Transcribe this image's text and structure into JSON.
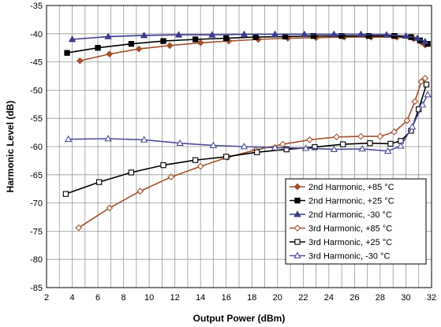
{
  "chart_data": {
    "type": "line",
    "title": "",
    "xlabel": "Output Power (dBm)",
    "ylabel": "Harmonic Level (dB)",
    "xlim": [
      2,
      32
    ],
    "ylim": [
      -85,
      -35
    ],
    "x_ticks": [
      "2",
      "4",
      "6",
      "8",
      "10",
      "12",
      "14",
      "16",
      "18",
      "20",
      "22",
      "24",
      "26",
      "28",
      "30",
      "32"
    ],
    "y_ticks": [
      "-35",
      "-40",
      "-45",
      "-50",
      "-55",
      "-60",
      "-65",
      "-70",
      "-75",
      "-80",
      "-85"
    ],
    "x_minor_step": 1,
    "grid": true,
    "legend_position": "bottom-right",
    "series": [
      {
        "name": "2nd Harmonic, +85 °C",
        "color": "#a0522d",
        "marker": "diamond-filled",
        "points": [
          [
            4.6,
            -44.8
          ],
          [
            6.9,
            -43.6
          ],
          [
            9.2,
            -42.7
          ],
          [
            11.6,
            -42.1
          ],
          [
            14.0,
            -41.6
          ],
          [
            16.2,
            -41.3
          ],
          [
            18.5,
            -41.0
          ],
          [
            20.8,
            -40.8
          ],
          [
            23.0,
            -40.7
          ],
          [
            25.2,
            -40.6
          ],
          [
            27.3,
            -40.6
          ],
          [
            29.3,
            -40.6
          ],
          [
            30.6,
            -40.9
          ],
          [
            31.2,
            -41.5
          ],
          [
            31.5,
            -42.0
          ]
        ]
      },
      {
        "name": "2nd Harmonic, +25 °C",
        "color": "#000000",
        "marker": "square-filled",
        "points": [
          [
            3.6,
            -43.4
          ],
          [
            6.0,
            -42.5
          ],
          [
            8.6,
            -41.8
          ],
          [
            11.1,
            -41.3
          ],
          [
            13.6,
            -41.0
          ],
          [
            16.0,
            -40.8
          ],
          [
            18.3,
            -40.6
          ],
          [
            20.6,
            -40.5
          ],
          [
            22.8,
            -40.4
          ],
          [
            25.0,
            -40.4
          ],
          [
            27.1,
            -40.4
          ],
          [
            29.1,
            -40.4
          ],
          [
            30.4,
            -40.6
          ],
          [
            31.1,
            -41.2
          ],
          [
            31.7,
            -41.8
          ]
        ]
      },
      {
        "name": "2nd Harmonic, -30 °C",
        "color": "#3c3c8c",
        "marker": "triangle-filled",
        "points": [
          [
            4.0,
            -41.0
          ],
          [
            6.8,
            -40.5
          ],
          [
            9.6,
            -40.3
          ],
          [
            12.3,
            -40.2
          ],
          [
            14.9,
            -40.2
          ],
          [
            17.4,
            -40.1
          ],
          [
            19.8,
            -40.1
          ],
          [
            22.1,
            -40.1
          ],
          [
            24.4,
            -40.1
          ],
          [
            26.5,
            -40.1
          ],
          [
            28.5,
            -40.2
          ],
          [
            30.0,
            -40.4
          ],
          [
            30.9,
            -40.8
          ],
          [
            31.5,
            -41.4
          ]
        ]
      },
      {
        "name": "3rd Harmonic, +85 °C",
        "color": "#a0522d",
        "marker": "diamond-open",
        "points": [
          [
            4.5,
            -74.4
          ],
          [
            6.9,
            -70.9
          ],
          [
            9.3,
            -67.9
          ],
          [
            11.7,
            -65.4
          ],
          [
            14.0,
            -63.5
          ],
          [
            16.1,
            -61.9
          ],
          [
            18.3,
            -60.6
          ],
          [
            20.4,
            -59.6
          ],
          [
            22.5,
            -58.8
          ],
          [
            24.6,
            -58.3
          ],
          [
            26.5,
            -58.2
          ],
          [
            28.0,
            -58.2
          ],
          [
            29.1,
            -57.4
          ],
          [
            30.1,
            -55.4
          ],
          [
            30.7,
            -52.0
          ],
          [
            31.2,
            -48.5
          ],
          [
            31.5,
            -47.9
          ]
        ]
      },
      {
        "name": "3rd Harmonic, +25 °C",
        "color": "#000000",
        "marker": "square-open",
        "points": [
          [
            3.5,
            -68.4
          ],
          [
            6.1,
            -66.3
          ],
          [
            8.6,
            -64.6
          ],
          [
            11.1,
            -63.3
          ],
          [
            13.6,
            -62.4
          ],
          [
            16.0,
            -61.8
          ],
          [
            18.4,
            -61.0
          ],
          [
            20.7,
            -60.5
          ],
          [
            22.9,
            -60.1
          ],
          [
            25.1,
            -59.6
          ],
          [
            27.2,
            -59.4
          ],
          [
            28.8,
            -59.5
          ],
          [
            29.6,
            -59.0
          ],
          [
            30.4,
            -57.2
          ],
          [
            31.0,
            -53.4
          ],
          [
            31.6,
            -49.0
          ]
        ]
      },
      {
        "name": "3rd Harmonic, -30 °C",
        "color": "#50509a",
        "marker": "triangle-open",
        "points": [
          [
            3.7,
            -58.7
          ],
          [
            6.8,
            -58.6
          ],
          [
            9.6,
            -58.8
          ],
          [
            12.4,
            -59.4
          ],
          [
            15.0,
            -59.8
          ],
          [
            17.4,
            -60.0
          ],
          [
            19.8,
            -60.2
          ],
          [
            22.2,
            -60.3
          ],
          [
            24.4,
            -60.5
          ],
          [
            26.6,
            -60.4
          ],
          [
            28.6,
            -60.8
          ],
          [
            29.6,
            -59.9
          ],
          [
            30.5,
            -56.5
          ],
          [
            31.3,
            -52.6
          ],
          [
            31.7,
            -50.8
          ]
        ]
      }
    ]
  }
}
